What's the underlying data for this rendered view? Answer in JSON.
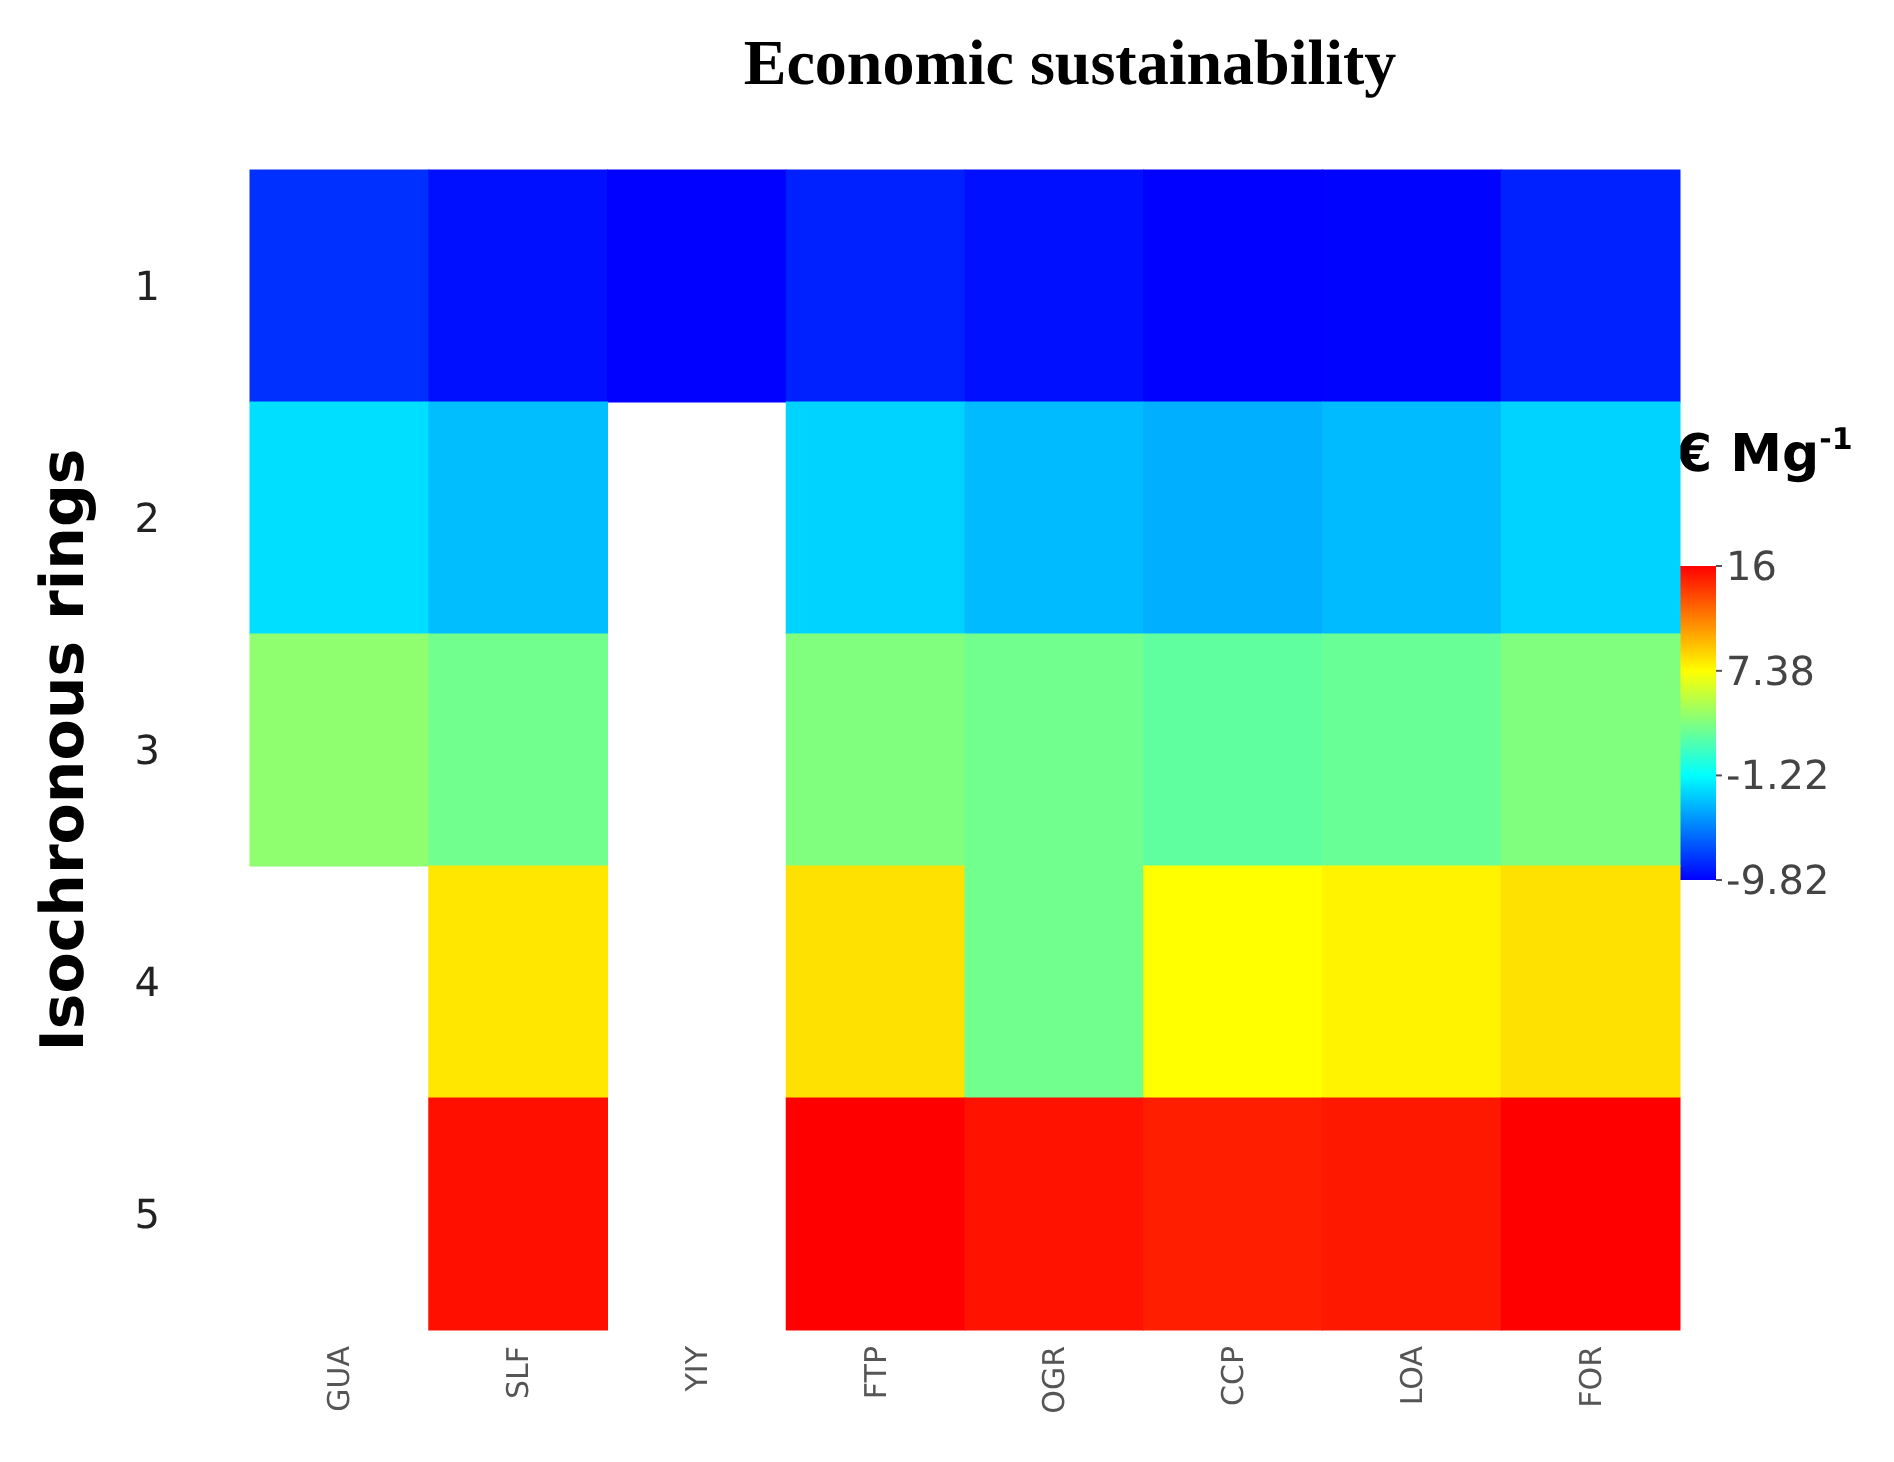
{
  "chart_data": {
    "type": "heatmap",
    "title": "Economic sustainability",
    "ylabel": "Isochronous rings",
    "clabel": "€ Mg$^{-1}$",
    "categories": [
      "GUA",
      "SLF",
      "YIY",
      "FTP",
      "OGR",
      "CCP",
      "LOA",
      "FOR"
    ],
    "y_categories": [
      "1",
      "2",
      "3",
      "4",
      "5"
    ],
    "cells": [
      [
        -8.2,
        -9.3,
        -9.8,
        -8.7,
        -9.3,
        -9.8,
        -9.7,
        -8.7
      ],
      [
        -2.3,
        -3.4,
        null,
        -2.7,
        -3.5,
        -3.9,
        -3.5,
        -2.7
      ],
      [
        3.6,
        2.6,
        null,
        3.1,
        2.6,
        2.0,
        2.3,
        3.1
      ],
      [
        null,
        8.2,
        null,
        8.4,
        2.6,
        7.4,
        7.8,
        8.4
      ],
      [
        null,
        15.5,
        null,
        16,
        15.4,
        15.0,
        15.2,
        16
      ]
    ],
    "clim": [
      -9.82,
      16
    ],
    "cticks": [
      -9.82,
      -1.22,
      7.38,
      16
    ]
  }
}
